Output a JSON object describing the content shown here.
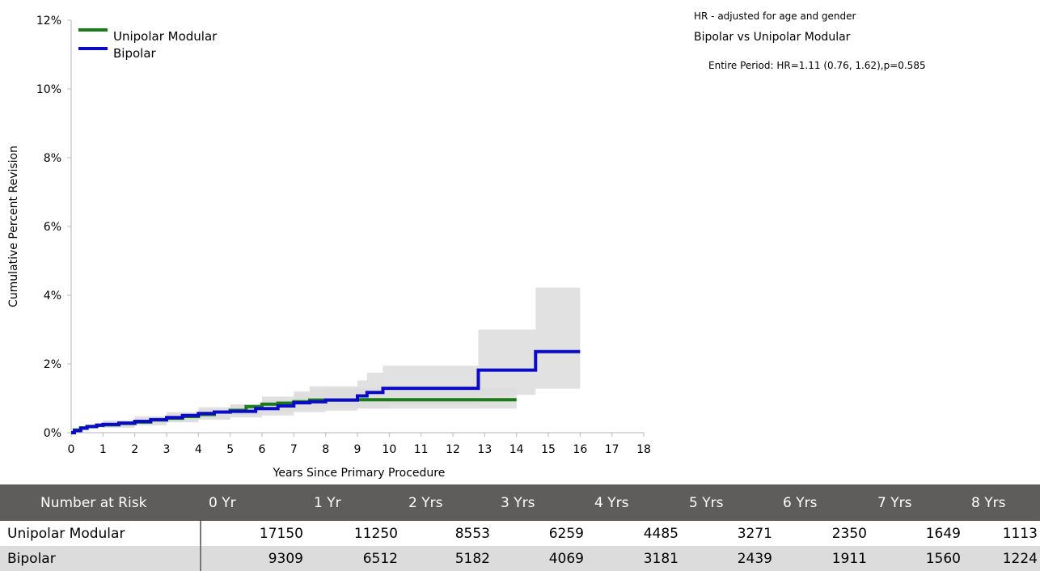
{
  "chart_data": {
    "type": "line",
    "xlabel": "Years Since Primary Procedure",
    "ylabel": "Cumulative Percent Revision",
    "xlim": [
      0,
      18
    ],
    "ylim": [
      0,
      12
    ],
    "x_ticks": [
      "0",
      "1",
      "2",
      "3",
      "4",
      "5",
      "6",
      "7",
      "8",
      "9",
      "10",
      "11",
      "12",
      "13",
      "14",
      "15",
      "16",
      "17",
      "18"
    ],
    "y_ticks": [
      "0%",
      "2%",
      "4%",
      "6%",
      "8%",
      "10%",
      "12%"
    ],
    "legend_position": "top-left",
    "series": [
      {
        "name": "Unipolar Modular",
        "color": "#1a7a1a",
        "points": [
          [
            0,
            0
          ],
          [
            0.1,
            0.08
          ],
          [
            0.3,
            0.14
          ],
          [
            0.5,
            0.18
          ],
          [
            0.8,
            0.21
          ],
          [
            1,
            0.23
          ],
          [
            1.5,
            0.27
          ],
          [
            2,
            0.31
          ],
          [
            2.5,
            0.37
          ],
          [
            3,
            0.42
          ],
          [
            3.5,
            0.47
          ],
          [
            4,
            0.53
          ],
          [
            4.5,
            0.6
          ],
          [
            5,
            0.65
          ],
          [
            5.5,
            0.76
          ],
          [
            6,
            0.83
          ],
          [
            6.5,
            0.86
          ],
          [
            7,
            0.9
          ],
          [
            7.5,
            0.95
          ],
          [
            8,
            0.95
          ],
          [
            9,
            0.96
          ],
          [
            10,
            0.96
          ],
          [
            12,
            0.96
          ],
          [
            14,
            0.96
          ]
        ],
        "ci_lower": [
          [
            0,
            0
          ],
          [
            1,
            0.16
          ],
          [
            2,
            0.22
          ],
          [
            3,
            0.32
          ],
          [
            4,
            0.41
          ],
          [
            5,
            0.5
          ],
          [
            6,
            0.6
          ],
          [
            7,
            0.66
          ],
          [
            8,
            0.7
          ],
          [
            9,
            0.7
          ],
          [
            10,
            0.7
          ],
          [
            14,
            0.7
          ]
        ],
        "ci_upper": [
          [
            0,
            0
          ],
          [
            1,
            0.3
          ],
          [
            2,
            0.42
          ],
          [
            3,
            0.56
          ],
          [
            4,
            0.68
          ],
          [
            5,
            0.82
          ],
          [
            6,
            1.05
          ],
          [
            7,
            1.2
          ],
          [
            7.5,
            1.28
          ],
          [
            8,
            1.3
          ],
          [
            9,
            1.3
          ],
          [
            10,
            1.3
          ],
          [
            14,
            1.3
          ]
        ]
      },
      {
        "name": "Bipolar",
        "color": "#0a0ac8",
        "points": [
          [
            0,
            0
          ],
          [
            0.1,
            0.06
          ],
          [
            0.3,
            0.13
          ],
          [
            0.5,
            0.18
          ],
          [
            0.8,
            0.22
          ],
          [
            1,
            0.24
          ],
          [
            1.5,
            0.28
          ],
          [
            2,
            0.33
          ],
          [
            2.5,
            0.38
          ],
          [
            3,
            0.44
          ],
          [
            3.5,
            0.5
          ],
          [
            4,
            0.56
          ],
          [
            4.5,
            0.6
          ],
          [
            5,
            0.62
          ],
          [
            5.8,
            0.7
          ],
          [
            6.5,
            0.78
          ],
          [
            7,
            0.87
          ],
          [
            7.5,
            0.9
          ],
          [
            8,
            0.95
          ],
          [
            9,
            1.07
          ],
          [
            9.3,
            1.17
          ],
          [
            9.8,
            1.29
          ],
          [
            12.8,
            1.82
          ],
          [
            14.6,
            2.36
          ],
          [
            16,
            2.36
          ]
        ],
        "ci_lower": [
          [
            0,
            0
          ],
          [
            1,
            0.14
          ],
          [
            2,
            0.22
          ],
          [
            3,
            0.3
          ],
          [
            4,
            0.38
          ],
          [
            5,
            0.44
          ],
          [
            6,
            0.5
          ],
          [
            7,
            0.6
          ],
          [
            8,
            0.64
          ],
          [
            9,
            0.72
          ],
          [
            10,
            0.82
          ],
          [
            12.8,
            1.1
          ],
          [
            14.6,
            1.28
          ],
          [
            16,
            1.28
          ]
        ],
        "ci_upper": [
          [
            0,
            0
          ],
          [
            1,
            0.36
          ],
          [
            2,
            0.48
          ],
          [
            3,
            0.6
          ],
          [
            4,
            0.74
          ],
          [
            5,
            0.82
          ],
          [
            6,
            0.96
          ],
          [
            7,
            1.12
          ],
          [
            7.5,
            1.35
          ],
          [
            9,
            1.52
          ],
          [
            9.3,
            1.75
          ],
          [
            9.8,
            1.95
          ],
          [
            12.8,
            3.0
          ],
          [
            14.6,
            4.22
          ],
          [
            16,
            4.22
          ]
        ]
      }
    ]
  },
  "hr_note": {
    "line1": "HR - adjusted for age and gender",
    "line2": "Bipolar vs Unipolar Modular",
    "line3": "Entire Period: HR=1.11 (0.76, 1.62),p=0.585"
  },
  "risk_table": {
    "header_label": "Number at Risk",
    "columns": [
      "0 Yr",
      "1 Yr",
      "2 Yrs",
      "3 Yrs",
      "4 Yrs",
      "5 Yrs",
      "6 Yrs",
      "7 Yrs",
      "8 Yrs"
    ],
    "rows": [
      {
        "name": "Unipolar Modular",
        "values": [
          "17150",
          "11250",
          "8553",
          "6259",
          "4485",
          "3271",
          "2350",
          "1649",
          "1113"
        ]
      },
      {
        "name": "Bipolar",
        "values": [
          "9309",
          "6512",
          "5182",
          "4069",
          "3181",
          "2439",
          "1911",
          "1560",
          "1224"
        ]
      }
    ]
  }
}
